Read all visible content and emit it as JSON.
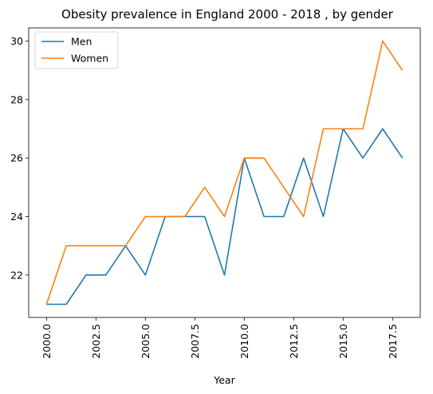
{
  "chart_data": {
    "type": "line",
    "title": "Obesity prevalence in England 2000 - 2018 , by gender",
    "xlabel": "Year",
    "ylabel": "",
    "x": [
      2000,
      2001,
      2002,
      2003,
      2004,
      2005,
      2006,
      2007,
      2008,
      2009,
      2010,
      2011,
      2012,
      2013,
      2014,
      2015,
      2016,
      2017,
      2018
    ],
    "series": [
      {
        "name": "Men",
        "color": "#1f77b4",
        "values": [
          21,
          21,
          22,
          22,
          23,
          22,
          24,
          24,
          24,
          22,
          26,
          24,
          24,
          26,
          24,
          27,
          26,
          27,
          26
        ]
      },
      {
        "name": "Women",
        "color": "#ff7f0e",
        "values": [
          21,
          23,
          23,
          23,
          23,
          24,
          24,
          24,
          25,
          24,
          26,
          26,
          25,
          24,
          27,
          27,
          27,
          30,
          29
        ]
      }
    ],
    "xlim": [
      1999.1,
      2018.9
    ],
    "ylim": [
      20.55,
      30.45
    ],
    "xticks": [
      2000.0,
      2002.5,
      2005.0,
      2007.5,
      2010.0,
      2012.5,
      2015.0,
      2017.5
    ],
    "xtick_labels": [
      "2000.0",
      "2002.5",
      "2005.0",
      "2007.5",
      "2010.0",
      "2012.5",
      "2015.0",
      "2017.5"
    ],
    "yticks": [
      22,
      24,
      26,
      28,
      30
    ],
    "ytick_labels": [
      "22",
      "24",
      "26",
      "28",
      "30"
    ],
    "grid": false,
    "legend_position": "upper-left"
  }
}
